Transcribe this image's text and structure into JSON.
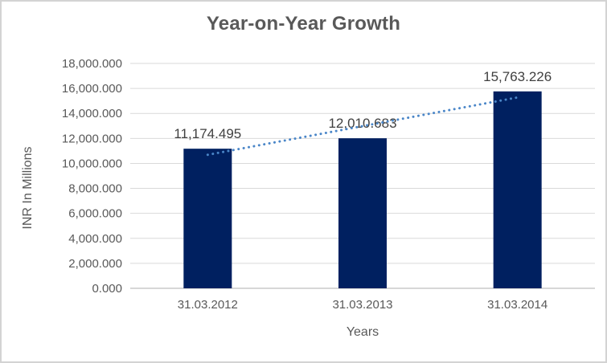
{
  "chart_data": {
    "type": "bar",
    "title": "Year-on-Year Growth",
    "xlabel": "Years",
    "ylabel": "INR In Millions",
    "categories": [
      "31.03.2012",
      "31.03.2013",
      "31.03.2014"
    ],
    "values": [
      11174.495,
      12010.683,
      15763.226
    ],
    "data_labels": [
      "11,174.495",
      "12,010.683",
      "15,763.226"
    ],
    "ylim": [
      0,
      18000
    ],
    "y_step": 2000,
    "y_tick_labels": [
      "18,000.000",
      "16,000.000",
      "14,000.000",
      "12,000.000",
      "10,000.000",
      "8,000.000",
      "6,000.000",
      "4,000.000",
      "2,000.000",
      "0.000"
    ],
    "grid": true,
    "legend_position": "none",
    "trendline": {
      "type": "linear",
      "style": "dotted"
    },
    "colors": {
      "bar": "#002060",
      "trendline": "#4a86c8",
      "gridline": "#d9d9d9",
      "axis_line": "#bfbfbf",
      "tick_text": "#595959",
      "data_label_text": "#404040",
      "title_text": "#595959",
      "border": "#d3d3d3",
      "background": "#ffffff"
    }
  }
}
